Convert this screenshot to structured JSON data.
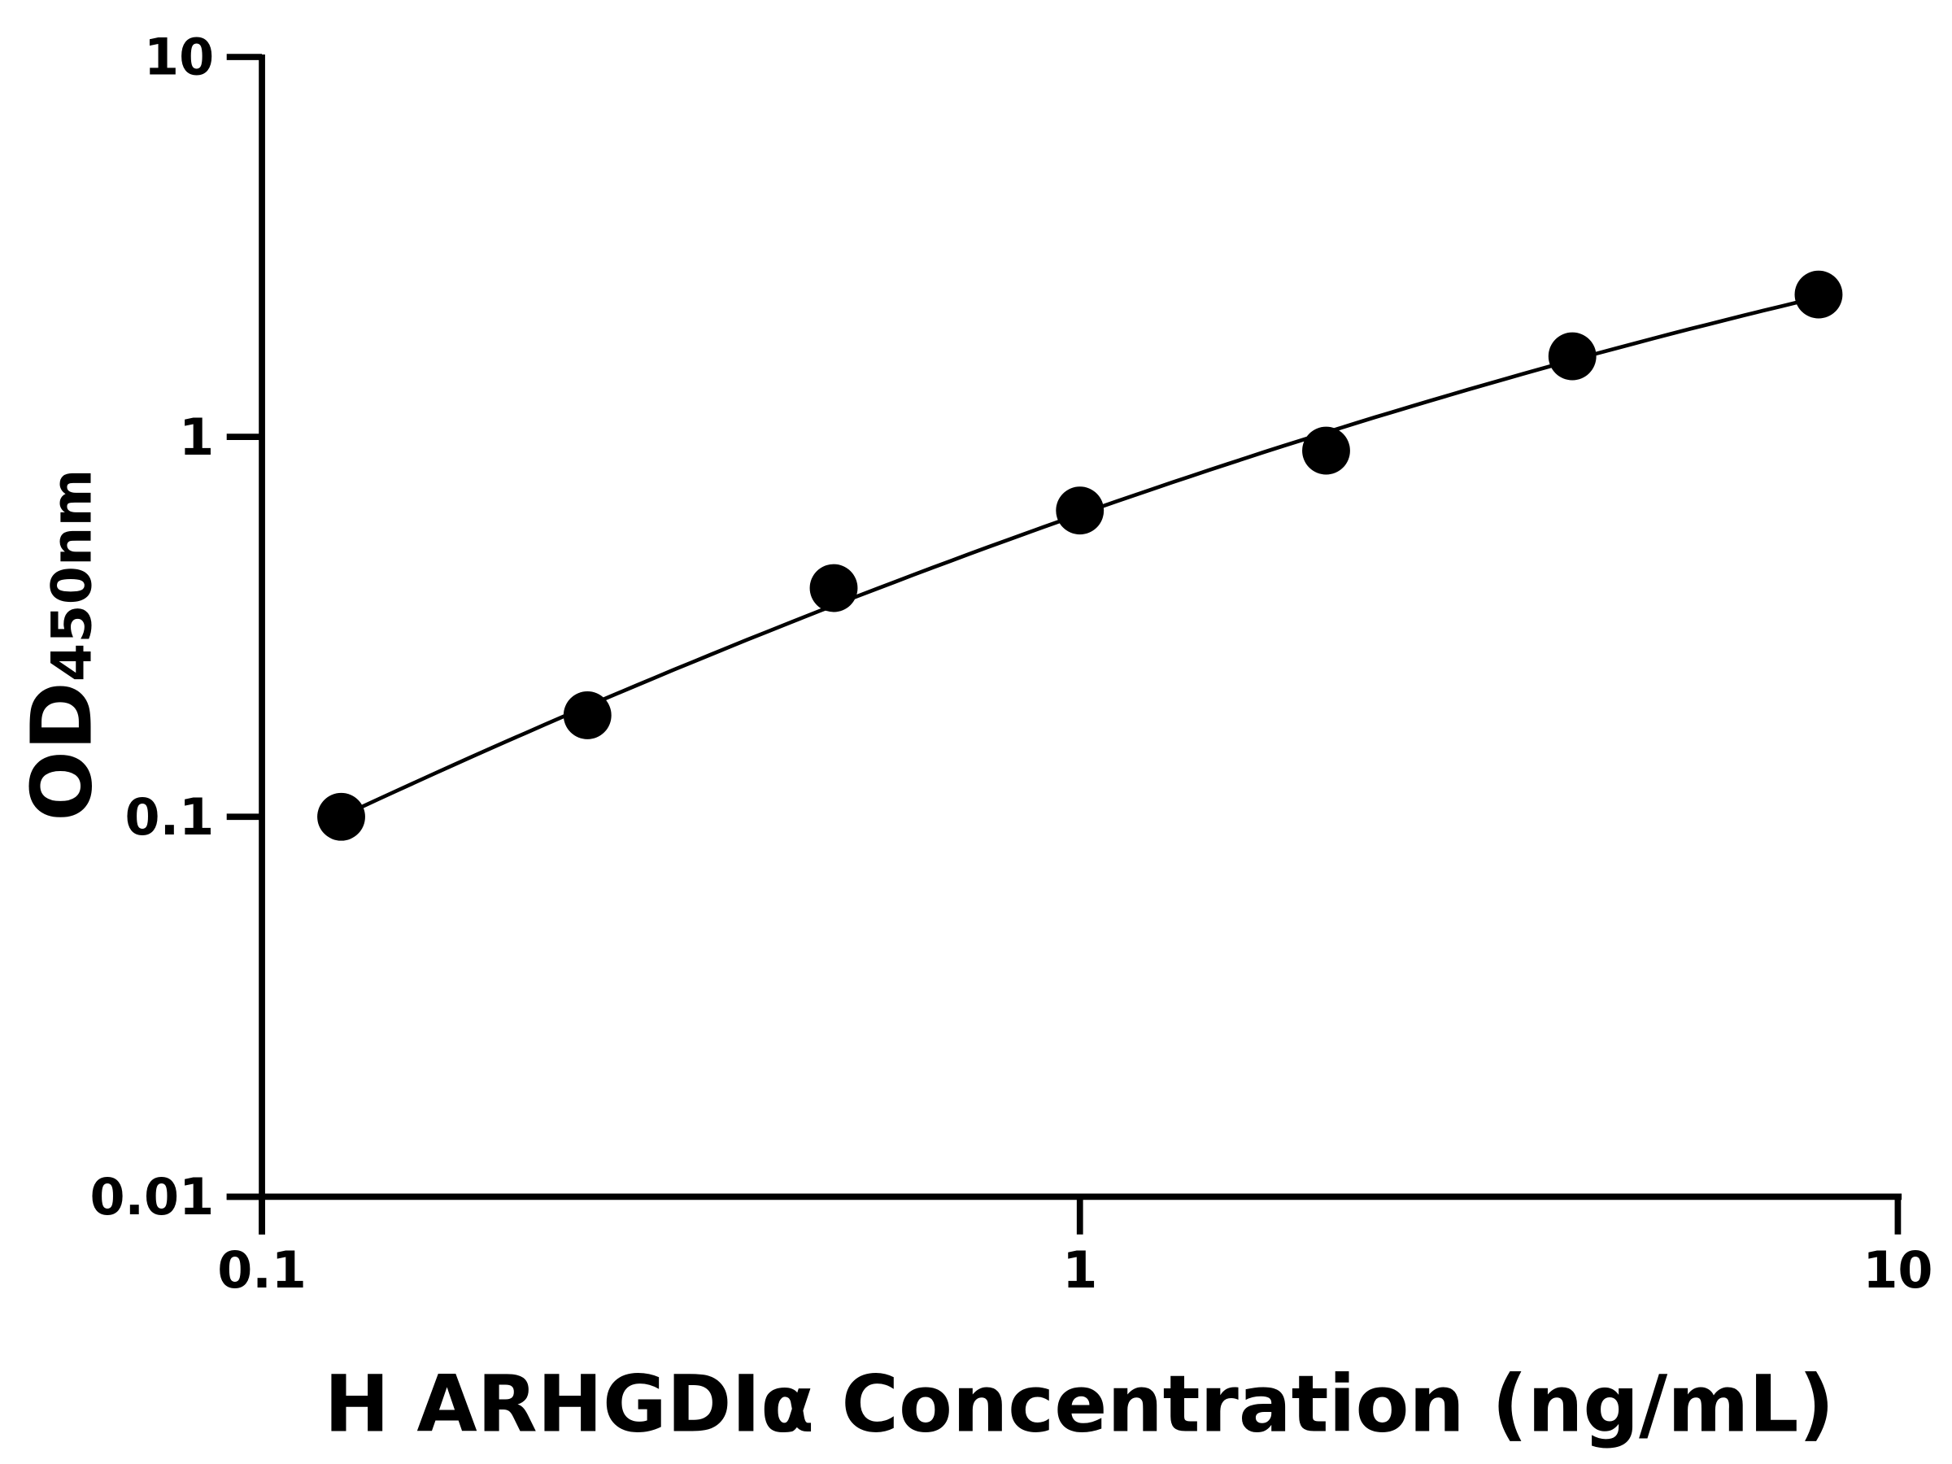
{
  "chart_data": {
    "type": "scatter",
    "title": "",
    "xlabel": "H ARHGDIα Concentration (ng/mL)",
    "ylabel_main": "OD",
    "ylabel_sub": "450nm",
    "x_scale": "log",
    "y_scale": "log",
    "xlim": [
      0.1,
      10
    ],
    "ylim": [
      0.01,
      10
    ],
    "x_ticks": [
      "0.1",
      "1",
      "10"
    ],
    "y_ticks": [
      "0.01",
      "0.1",
      "1",
      "10"
    ],
    "grid": false,
    "fit_line": true,
    "points": [
      {
        "x": 0.125,
        "y": 0.1
      },
      {
        "x": 0.25,
        "y": 0.185
      },
      {
        "x": 0.5,
        "y": 0.4
      },
      {
        "x": 1,
        "y": 0.64
      },
      {
        "x": 2,
        "y": 0.92
      },
      {
        "x": 4,
        "y": 1.63
      },
      {
        "x": 8,
        "y": 2.37
      }
    ],
    "color": "#000000"
  }
}
